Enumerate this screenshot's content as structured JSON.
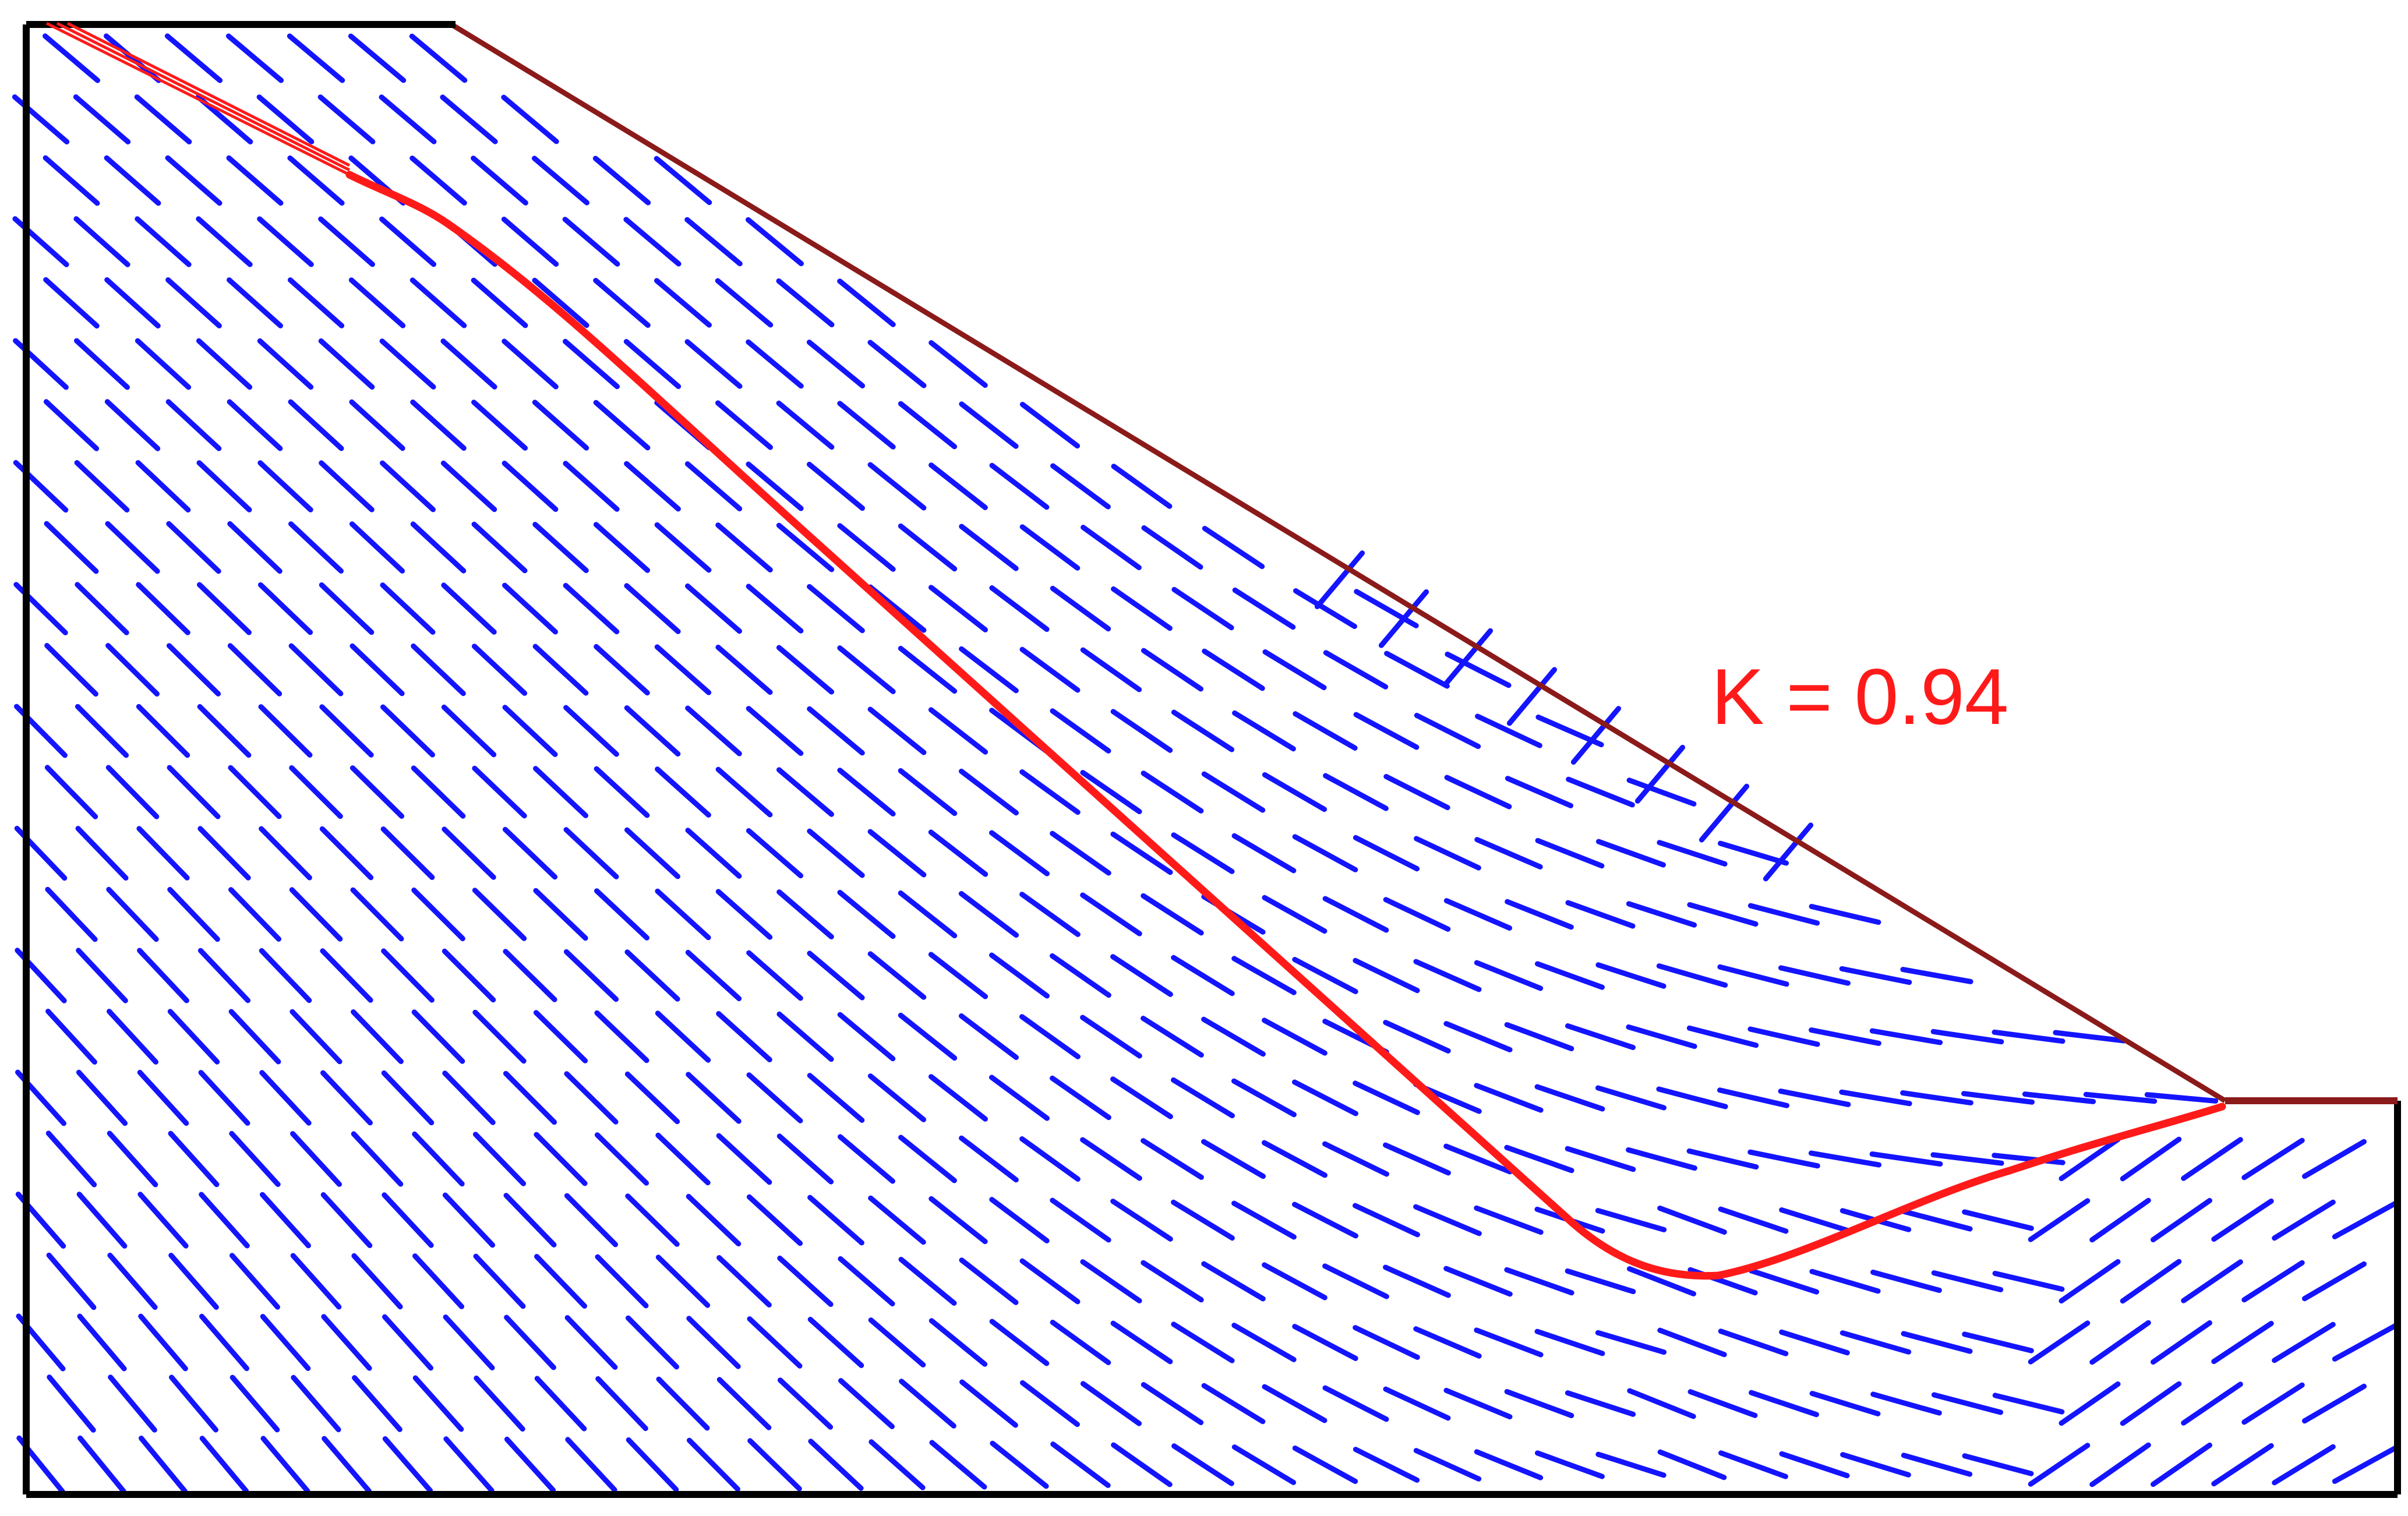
{
  "diagram": {
    "factor_label": "K = 0.94",
    "colors": {
      "background": "#ffffff",
      "boundary": "#000000",
      "slope_surface": "#8b1a1a",
      "slip_surface": "#ff1a1a",
      "stress_marks": "#1414ff",
      "label": "#ff1a1a"
    }
  }
}
